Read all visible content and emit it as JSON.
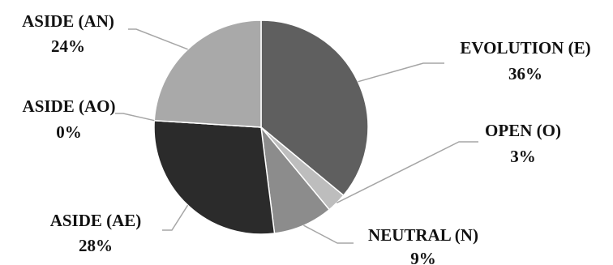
{
  "chart_data": {
    "type": "pie",
    "title": "",
    "slices": [
      {
        "label": "EVOLUTION (E)",
        "value_label": "36%",
        "value": 36,
        "color": "#5f5f5f"
      },
      {
        "label": "OPEN (O)",
        "value_label": "3%",
        "value": 3,
        "color": "#bdbdbd"
      },
      {
        "label": "NEUTRAL (N)",
        "value_label": "9%",
        "value": 9,
        "color": "#8c8c8c"
      },
      {
        "label": "ASIDE (AE)",
        "value_label": "28%",
        "value": 28,
        "color": "#2b2b2b"
      },
      {
        "label": "ASIDE (AO)",
        "value_label": "0%",
        "value": 0,
        "color": "#d9d9d9"
      },
      {
        "label": "ASIDE (AN)",
        "value_label": "24%",
        "value": 24,
        "color": "#a9a9a9"
      }
    ],
    "start_angle": "12 o'clock",
    "direction": "clockwise",
    "legend": "none"
  }
}
